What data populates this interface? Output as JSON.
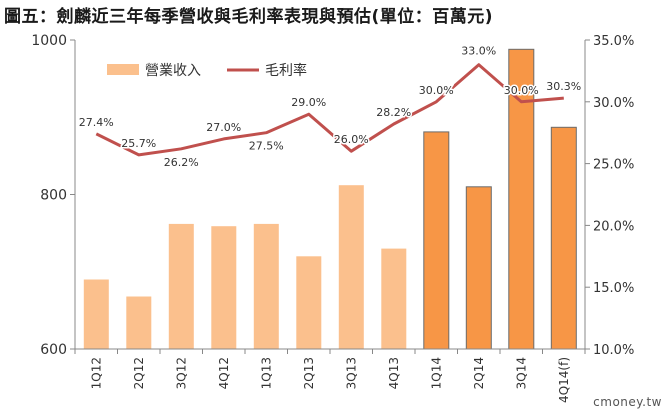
{
  "title": "圖五：劍麟近三年每季營收與毛利率表現與預估(單位：百萬元)",
  "watermark": "cmoney.tw",
  "chart_data": {
    "type": "bar",
    "categories": [
      "1Q12",
      "2Q12",
      "3Q12",
      "4Q12",
      "1Q13",
      "2Q13",
      "3Q13",
      "4Q13",
      "1Q14",
      "2Q14",
      "3Q14",
      "4Q14(f)"
    ],
    "series": [
      {
        "name": "營業收入",
        "type": "bar",
        "axis": "left",
        "values": [
          690,
          668,
          762,
          759,
          762,
          720,
          812,
          730,
          881,
          810,
          988,
          887
        ],
        "colors": [
          "#fbc08d",
          "#fbc08d",
          "#fbc08d",
          "#fbc08d",
          "#fbc08d",
          "#fbc08d",
          "#fbc08d",
          "#fbc08d",
          "#f79646",
          "#f79646",
          "#f79646",
          "#f79646"
        ]
      },
      {
        "name": "毛利率",
        "type": "line",
        "axis": "right",
        "values": [
          27.4,
          25.7,
          26.2,
          27.0,
          27.5,
          29.0,
          26.0,
          28.2,
          30.0,
          33.0,
          30.0,
          30.3
        ],
        "labels": [
          "27.4%",
          "25.7%",
          "26.2%",
          "27.0%",
          "27.5%",
          "29.0%",
          "26.0%",
          "28.2%",
          "30.0%",
          "33.0%",
          "30.0%",
          "30.3%"
        ],
        "color": "#c0504d"
      }
    ],
    "y_left": {
      "ylim": [
        600,
        1000
      ],
      "ticks": [
        600,
        800,
        1000
      ],
      "tick_labels": [
        "600",
        "800",
        "1000"
      ]
    },
    "y_right": {
      "ylim": [
        10,
        35
      ],
      "ticks": [
        10,
        15,
        20,
        25,
        30,
        35
      ],
      "tick_labels": [
        "10.0%",
        "15.0%",
        "20.0%",
        "25.0%",
        "30.0%",
        "35.0%"
      ]
    },
    "legend": {
      "position": "top-left",
      "items": [
        "營業收入",
        "毛利率"
      ]
    },
    "grid": false
  }
}
